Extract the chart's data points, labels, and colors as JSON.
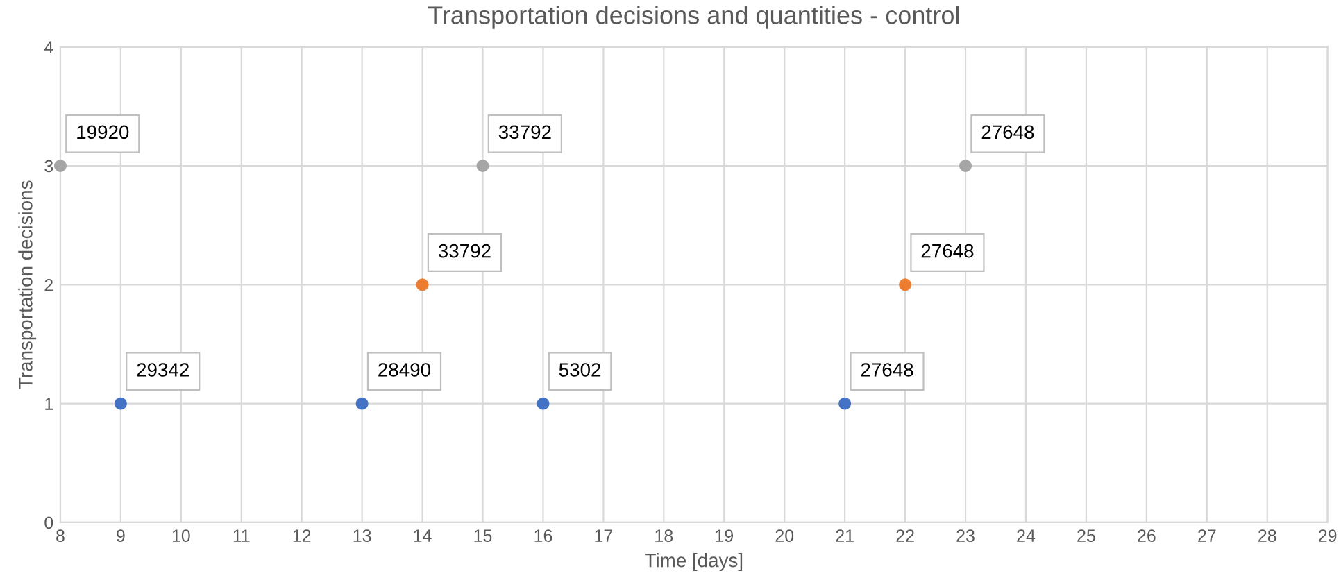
{
  "chart_data": {
    "type": "scatter",
    "title": "Transportation decisions and quantities - control",
    "xlabel": "Time [days]",
    "ylabel": "Transportation decisions",
    "series": [
      {
        "color": "#4472c4",
        "x": [
          9,
          13,
          16,
          21
        ],
        "values": [
          1,
          1,
          1,
          1
        ]
      },
      {
        "color": "#ed7d31",
        "x": [
          14,
          22
        ],
        "values": [
          2,
          2
        ]
      },
      {
        "color": "#a5a5a5",
        "x": [
          8,
          15,
          23
        ],
        "values": [
          3,
          3,
          3
        ]
      }
    ],
    "annotations": [
      {
        "text": "29342",
        "x": 9,
        "y": 1
      },
      {
        "text": "28490",
        "x": 13,
        "y": 1
      },
      {
        "text": "5302",
        "x": 16,
        "y": 1
      },
      {
        "text": "27648",
        "x": 21,
        "y": 1
      },
      {
        "text": "33792",
        "x": 14,
        "y": 2
      },
      {
        "text": "27648",
        "x": 22,
        "y": 2
      },
      {
        "text": "19920",
        "x": 8,
        "y": 3
      },
      {
        "text": "33792",
        "x": 15,
        "y": 3
      },
      {
        "text": "27648",
        "x": 23,
        "y": 3
      }
    ],
    "xlim": [
      8,
      29
    ],
    "xticks": [
      8,
      9,
      10,
      11,
      12,
      13,
      14,
      15,
      16,
      17,
      18,
      19,
      20,
      21,
      22,
      23,
      24,
      25,
      26,
      27,
      28,
      29
    ],
    "ylim": [
      0,
      4
    ],
    "yticks": [
      0,
      1,
      2,
      3,
      4
    ],
    "grid": true,
    "marker": "circle"
  }
}
